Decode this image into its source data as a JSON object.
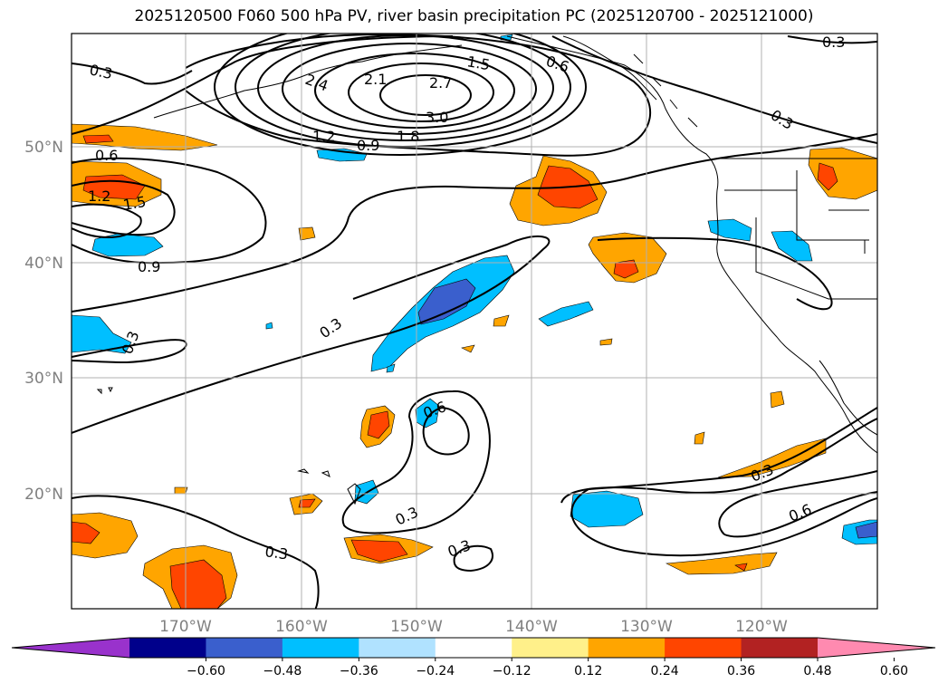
{
  "title": "2025120500 F060 500 hPa PV, river basin precipitation PC (2025120700 - 2025121000)",
  "lat_labels": [
    "50°N",
    "40°N",
    "30°N",
    "20°N"
  ],
  "lon_labels": [
    "170°W",
    "160°W",
    "150°W",
    "140°W",
    "130°W",
    "120°W"
  ],
  "contour_labels": {
    "c1": "0.3",
    "c2": "0.3",
    "c3": "0.6",
    "c4": "2.4",
    "c5": "2.1",
    "c6": "1.5",
    "c7": "2.7",
    "c8": "3.0",
    "c9": "1.2",
    "c10": "0.9",
    "c11": "1.8",
    "c12": "0.6",
    "c13": "1.2",
    "c14": "1.5",
    "c15": "0.9",
    "c16": "0.3",
    "c17": "0.3",
    "c18": "0.3",
    "c19": "0.6",
    "c20": "0.3",
    "c21": "0.3",
    "c22": "0.3",
    "c23": "0.3",
    "c24": "0.6"
  },
  "colorbar": {
    "ticks": [
      "−0.60",
      "−0.48",
      "−0.36",
      "−0.24",
      "−0.12",
      "0.12",
      "0.24",
      "0.36",
      "0.48",
      "0.60"
    ],
    "colors": [
      "#9932cc",
      "#00008b",
      "#3a5fcd",
      "#00bfff",
      "#b0e2ff",
      "#ffffff",
      "#fff08a",
      "#ffa500",
      "#ff4500",
      "#b22222",
      "#ff8ab0"
    ]
  }
}
